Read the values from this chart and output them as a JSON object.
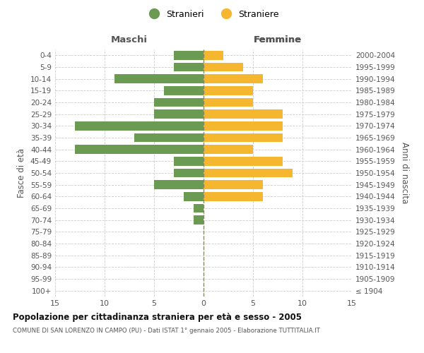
{
  "age_groups": [
    "100+",
    "95-99",
    "90-94",
    "85-89",
    "80-84",
    "75-79",
    "70-74",
    "65-69",
    "60-64",
    "55-59",
    "50-54",
    "45-49",
    "40-44",
    "35-39",
    "30-34",
    "25-29",
    "20-24",
    "15-19",
    "10-14",
    "5-9",
    "0-4"
  ],
  "birth_years": [
    "≤ 1904",
    "1905-1909",
    "1910-1914",
    "1915-1919",
    "1920-1924",
    "1925-1929",
    "1930-1934",
    "1935-1939",
    "1940-1944",
    "1945-1949",
    "1950-1954",
    "1955-1959",
    "1960-1964",
    "1965-1969",
    "1970-1974",
    "1975-1979",
    "1980-1984",
    "1985-1989",
    "1990-1994",
    "1995-1999",
    "2000-2004"
  ],
  "maschi": [
    0,
    0,
    0,
    0,
    0,
    0,
    1,
    1,
    2,
    5,
    3,
    3,
    13,
    7,
    13,
    5,
    5,
    4,
    9,
    3,
    3
  ],
  "femmine": [
    0,
    0,
    0,
    0,
    0,
    0,
    0,
    0,
    6,
    6,
    9,
    8,
    5,
    8,
    8,
    8,
    5,
    5,
    6,
    4,
    2
  ],
  "maschi_color": "#6b9a52",
  "femmine_color": "#f5b730",
  "center_line_color": "#888866",
  "grid_color": "#cccccc",
  "bg_color": "#ffffff",
  "title": "Popolazione per cittadinanza straniera per età e sesso - 2005",
  "subtitle": "COMUNE DI SAN LORENZO IN CAMPO (PU) - Dati ISTAT 1° gennaio 2005 - Elaborazione TUTTITALIA.IT",
  "ylabel_left": "Fasce di età",
  "ylabel_right": "Anni di nascita",
  "xlabel_left": "Maschi",
  "xlabel_right": "Femmine",
  "legend_maschi": "Stranieri",
  "legend_femmine": "Straniere",
  "xlim": 15,
  "xticks": [
    -15,
    -10,
    -5,
    0,
    5,
    10,
    15
  ]
}
